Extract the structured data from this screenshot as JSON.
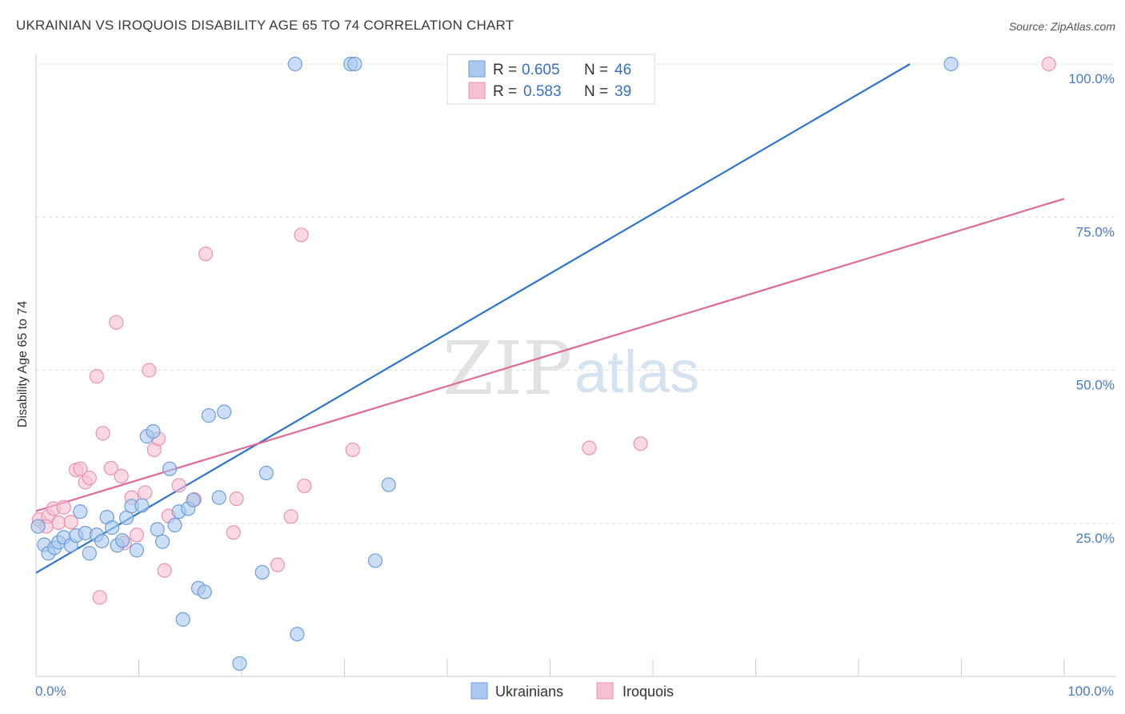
{
  "title": "UKRAINIAN VS IROQUOIS DISABILITY AGE 65 TO 74 CORRELATION CHART",
  "source": "Source: ZipAtlas.com",
  "watermark": {
    "zip": "ZIP",
    "atlas": "atlas"
  },
  "legend": [
    {
      "r_label": "R =",
      "r_value": "0.605",
      "n_label": "N =",
      "n_value": "46"
    },
    {
      "r_label": "R =",
      "r_value": "0.583",
      "n_label": "N =",
      "n_value": "39"
    }
  ],
  "colors": {
    "ukrainians_fill": "#a9c8ef",
    "ukrainians_stroke": "#6e9ed8",
    "ukrainians_line": "#2f74cf",
    "iroquois_fill": "#f6bfd2",
    "iroquois_stroke": "#ea93b2",
    "iroquois_line": "#de6b97",
    "axis_text": "#4a7ac2",
    "grid": "#dddddd"
  },
  "chart_data": {
    "type": "scatter",
    "title": "UKRAINIAN VS IROQUOIS DISABILITY AGE 65 TO 74 CORRELATION CHART",
    "xlabel": "",
    "ylabel": "Disability Age 65 to 74",
    "xlim": [
      0,
      100
    ],
    "ylim": [
      0,
      100
    ],
    "x_tick_labels": [
      "0.0%",
      "100.0%"
    ],
    "y_ticks": [
      {
        "value": 25,
        "label": "25.0%"
      },
      {
        "value": 50,
        "label": "50.0%"
      },
      {
        "value": 75,
        "label": "75.0%"
      },
      {
        "value": 100,
        "label": "100.0%"
      }
    ],
    "series": [
      {
        "name": "Ukrainians",
        "R": 0.605,
        "N": 46,
        "trend": [
          [
            0,
            16.9
          ],
          [
            85,
            100
          ]
        ],
        "points": [
          [
            0.2,
            24.5
          ],
          [
            0.8,
            21.5
          ],
          [
            1.2,
            20.1
          ],
          [
            1.8,
            21.0
          ],
          [
            2.2,
            21.9
          ],
          [
            2.7,
            22.7
          ],
          [
            3.4,
            21.4
          ],
          [
            3.9,
            23.0
          ],
          [
            4.3,
            26.9
          ],
          [
            4.8,
            23.4
          ],
          [
            5.2,
            20.1
          ],
          [
            5.9,
            23.1
          ],
          [
            6.4,
            22.1
          ],
          [
            6.9,
            26.0
          ],
          [
            7.4,
            24.3
          ],
          [
            7.9,
            21.4
          ],
          [
            8.4,
            22.2
          ],
          [
            8.8,
            25.9
          ],
          [
            9.3,
            27.8
          ],
          [
            9.8,
            20.6
          ],
          [
            10.3,
            27.9
          ],
          [
            10.8,
            39.2
          ],
          [
            11.4,
            40.0
          ],
          [
            11.8,
            24.0
          ],
          [
            12.3,
            22.0
          ],
          [
            13.0,
            33.9
          ],
          [
            13.5,
            24.7
          ],
          [
            13.9,
            26.9
          ],
          [
            14.3,
            9.3
          ],
          [
            14.8,
            27.4
          ],
          [
            15.3,
            28.8
          ],
          [
            15.8,
            14.4
          ],
          [
            16.4,
            13.8
          ],
          [
            16.8,
            42.6
          ],
          [
            17.8,
            29.2
          ],
          [
            18.3,
            43.2
          ],
          [
            19.8,
            2.1
          ],
          [
            22.0,
            17.0
          ],
          [
            22.4,
            33.2
          ],
          [
            25.4,
            6.9
          ],
          [
            25.2,
            100.0
          ],
          [
            30.6,
            100.0
          ],
          [
            31.0,
            100.0
          ],
          [
            33.0,
            18.9
          ],
          [
            34.3,
            31.3
          ],
          [
            89.0,
            100.0
          ]
        ]
      },
      {
        "name": "Iroquois",
        "R": 0.583,
        "N": 39,
        "trend": [
          [
            0,
            27.0
          ],
          [
            100,
            78.0
          ]
        ],
        "points": [
          [
            0.3,
            25.6
          ],
          [
            1.2,
            26.1
          ],
          [
            1.7,
            27.4
          ],
          [
            2.2,
            25.1
          ],
          [
            2.7,
            27.6
          ],
          [
            3.4,
            25.2
          ],
          [
            3.9,
            33.7
          ],
          [
            4.3,
            33.9
          ],
          [
            4.8,
            31.7
          ],
          [
            5.2,
            32.4
          ],
          [
            5.9,
            49.0
          ],
          [
            6.2,
            12.9
          ],
          [
            6.5,
            39.7
          ],
          [
            7.3,
            34.0
          ],
          [
            7.8,
            57.8
          ],
          [
            8.3,
            32.7
          ],
          [
            8.6,
            21.8
          ],
          [
            9.3,
            29.2
          ],
          [
            9.8,
            23.1
          ],
          [
            10.6,
            30.0
          ],
          [
            11.0,
            50.0
          ],
          [
            11.5,
            37.0
          ],
          [
            11.9,
            38.8
          ],
          [
            12.5,
            17.3
          ],
          [
            12.9,
            26.2
          ],
          [
            13.9,
            31.2
          ],
          [
            15.4,
            28.9
          ],
          [
            16.5,
            69.0
          ],
          [
            19.2,
            23.5
          ],
          [
            19.5,
            29.0
          ],
          [
            23.5,
            18.2
          ],
          [
            24.8,
            26.1
          ],
          [
            25.8,
            72.1
          ],
          [
            26.1,
            31.1
          ],
          [
            30.8,
            37.0
          ],
          [
            53.8,
            37.3
          ],
          [
            58.8,
            38.0
          ],
          [
            98.5,
            100.0
          ],
          [
            1.0,
            24.5
          ]
        ]
      }
    ]
  }
}
